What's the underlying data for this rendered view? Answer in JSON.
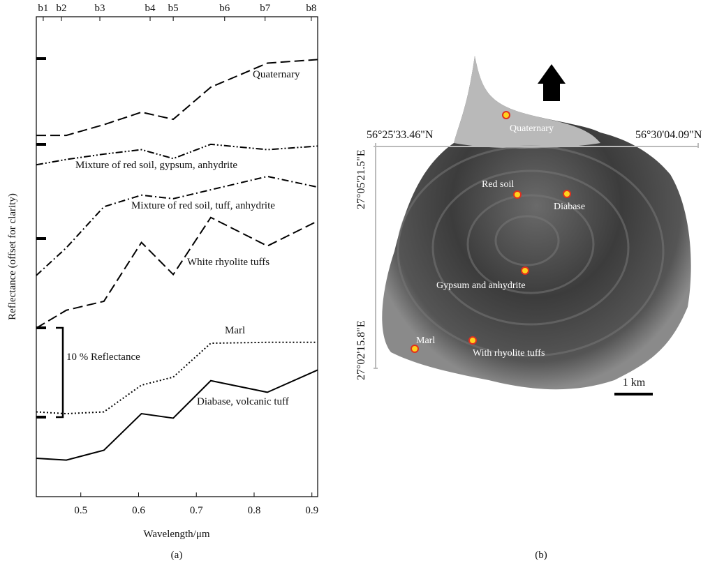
{
  "chart_data": {
    "type": "line",
    "x_label": "Wavelength/μm",
    "y_label": "Reflectance (offset for clarity)",
    "caption": "(a)",
    "xlim": [
      0.423,
      0.91
    ],
    "ylim": [
      0,
      53.8
    ],
    "xticks": [
      0.5,
      0.6,
      0.7,
      0.8,
      0.9
    ],
    "x2ticks": [
      {
        "value": 0.435,
        "label": "b1"
      },
      {
        "value": 0.4665,
        "label": "b2"
      },
      {
        "value": 0.533,
        "label": "b3"
      },
      {
        "value": 0.62,
        "label": "b4"
      },
      {
        "value": 0.66,
        "label": "b5"
      },
      {
        "value": 0.749,
        "label": "b6"
      },
      {
        "value": 0.819,
        "label": "b7"
      },
      {
        "value": 0.899,
        "label": "b8"
      }
    ],
    "x": [
      0.423,
      0.475,
      0.54,
      0.605,
      0.66,
      0.725,
      0.823,
      0.91
    ],
    "scale_bar": {
      "label": "10 % Reflectance",
      "value": 10
    },
    "series": [
      {
        "name": "Quaternary",
        "color": "#000000",
        "line_style": "dashed",
        "values": [
          40.5,
          40.5,
          41.7,
          43.1,
          42.3,
          45.9,
          48.6,
          49.0
        ]
      },
      {
        "name": "Mixture of red soil, gypsum, anhydrite",
        "color": "#000000",
        "line_style": "dash-dot-dot",
        "values": [
          37.2,
          37.8,
          38.4,
          38.9,
          37.9,
          39.5,
          38.9,
          39.3
        ]
      },
      {
        "name": "Mixture of red soil, tuff, anhydrite",
        "color": "#000000",
        "line_style": "dash-dot",
        "values": [
          24.8,
          27.9,
          32.5,
          33.8,
          33.4,
          34.4,
          35.9,
          34.7
        ]
      },
      {
        "name": "White rhyolite tuffs",
        "color": "#000000",
        "line_style": "dashed",
        "values": [
          18.9,
          20.9,
          21.9,
          28.5,
          24.9,
          31.3,
          28.1,
          30.9
        ]
      },
      {
        "name": "Marl",
        "color": "#000000",
        "line_style": "dotted",
        "values": [
          9.5,
          9.3,
          9.5,
          12.5,
          13.4,
          17.2,
          17.3,
          17.3
        ]
      },
      {
        "name": "Diabase, volcanic tuff",
        "color": "#000000",
        "line_style": "solid",
        "values": [
          4.3,
          4.1,
          5.2,
          9.3,
          8.8,
          13.0,
          11.7,
          14.2
        ]
      }
    ]
  },
  "map": {
    "caption": "(b)",
    "coords": [
      "56°25'33.46\"N",
      "56°30'04.09\"N",
      "27°05'21.5\"E",
      "27°02'15.8\"E"
    ],
    "scale": "1 km",
    "sites": [
      "Quaternary",
      "Red soil",
      "Diabase",
      "Gypsum and anhydrite",
      "Marl",
      "With rhyolite tuffs"
    ]
  }
}
